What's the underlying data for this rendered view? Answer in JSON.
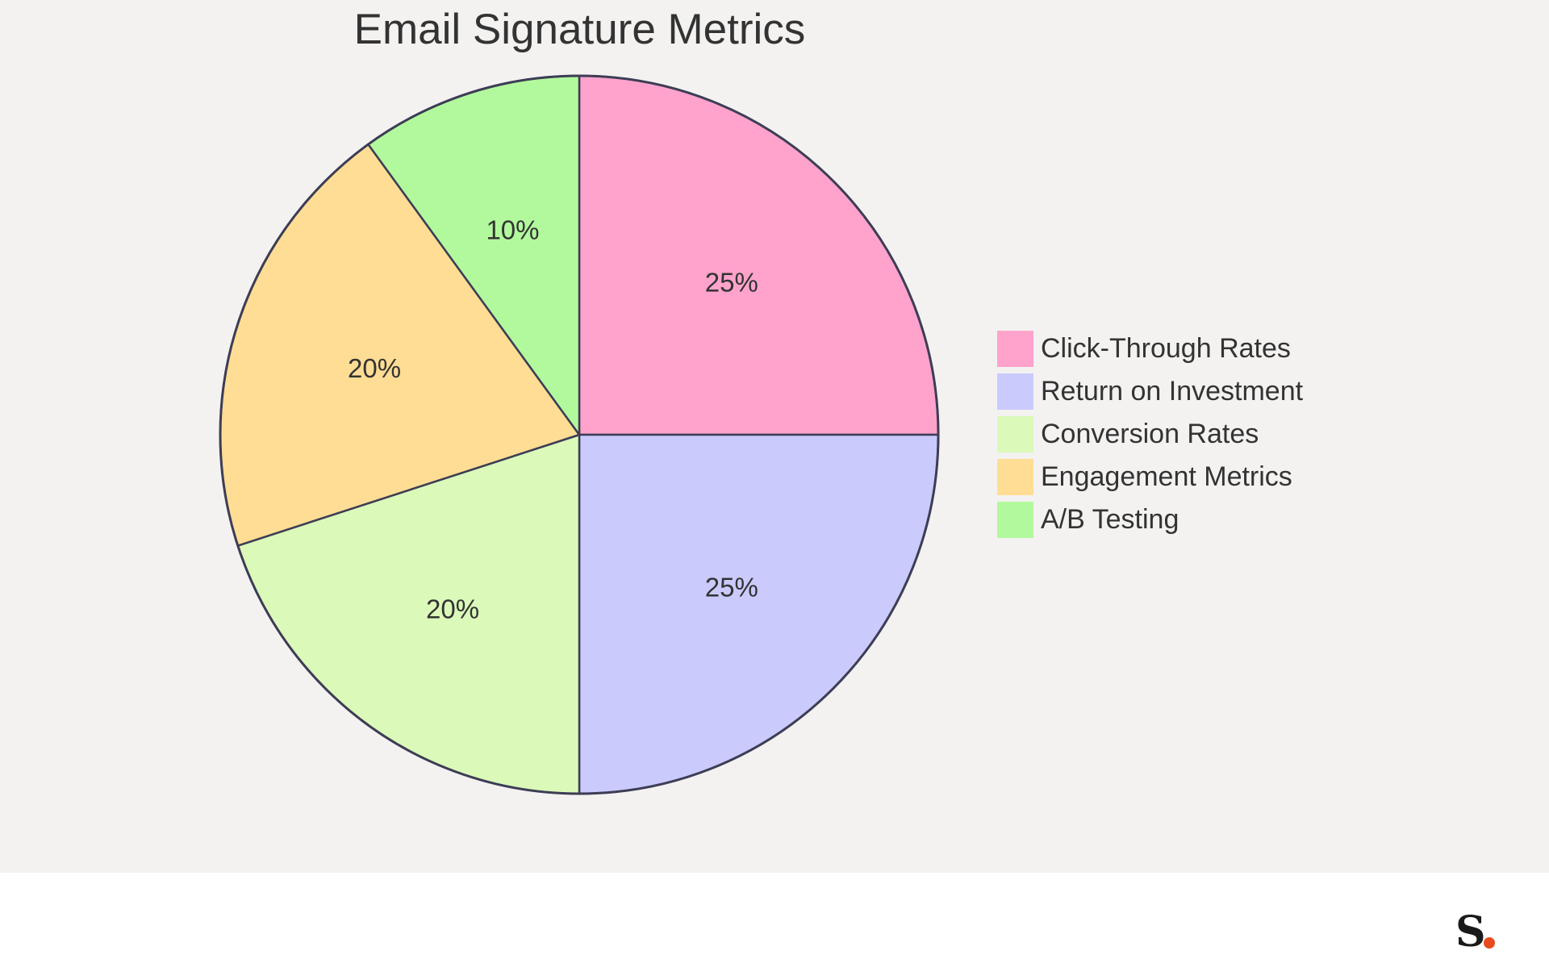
{
  "chart_data": {
    "type": "pie",
    "title": "Email Signature Metrics",
    "categories": [
      "Click-Through Rates",
      "Return on Investment",
      "Conversion Rates",
      "Engagement Metrics",
      "A/B Testing"
    ],
    "values": [
      25,
      25,
      20,
      20,
      10
    ],
    "value_labels": [
      "25%",
      "25%",
      "20%",
      "20%",
      "10%"
    ],
    "colors": [
      "#ffa3cc",
      "#cacafd",
      "#dbf9b9",
      "#ffdd94",
      "#b2f99d"
    ],
    "start_angle_deg": 0,
    "direction": "clockwise",
    "outline_color": "#3d3d55",
    "legend_position": "right"
  },
  "background_color": "#f3f2f1",
  "brand": {
    "logo_letter": "S",
    "accent_color": "#e84c1e"
  }
}
